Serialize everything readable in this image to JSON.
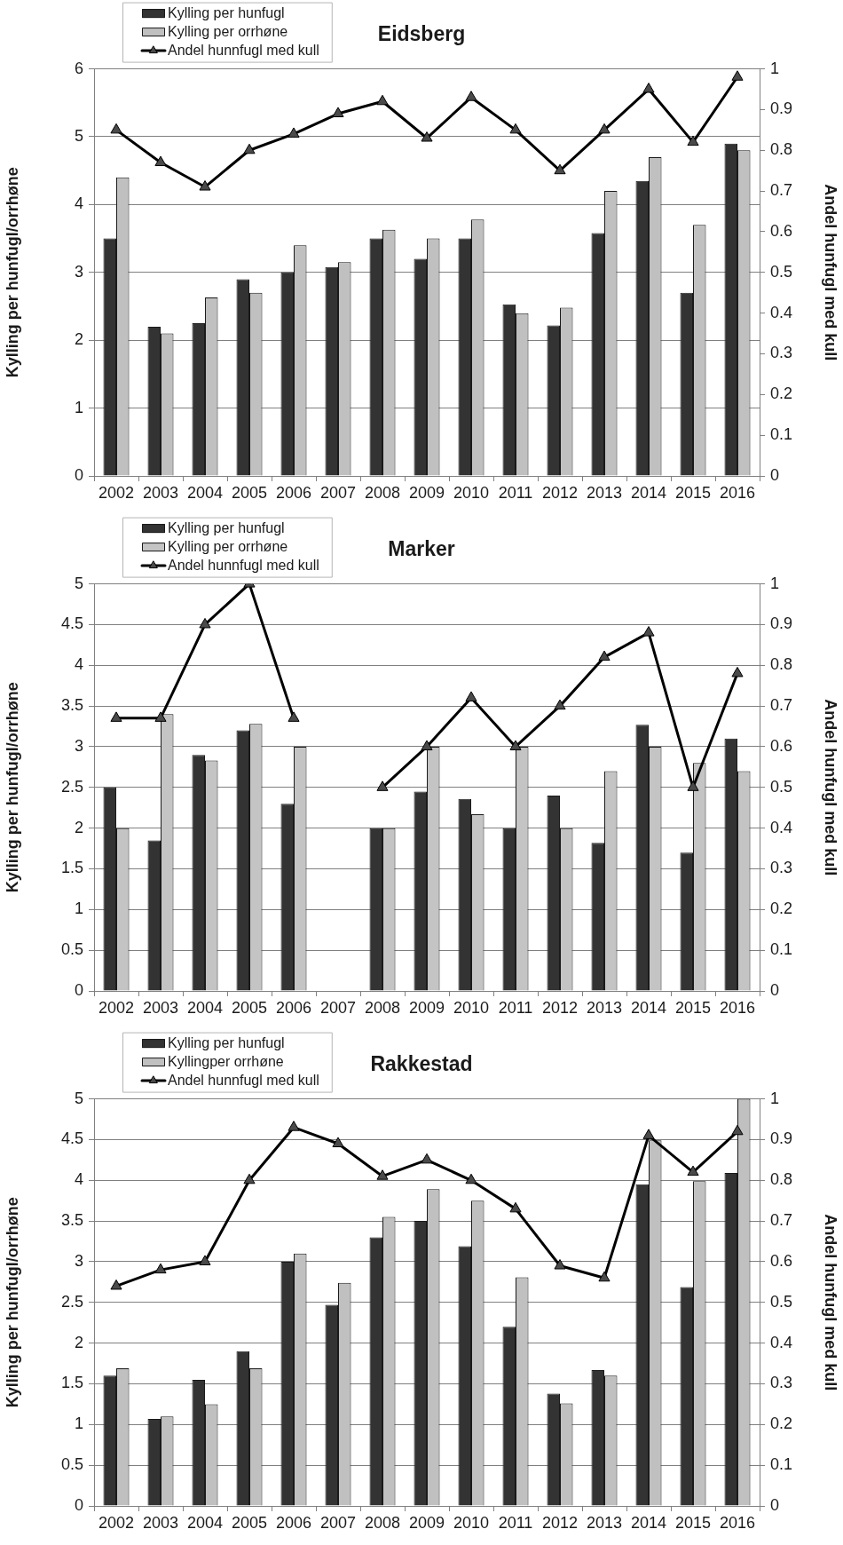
{
  "chart_data": [
    {
      "type": "bar",
      "title": "Eidsberg",
      "ylabel": "Kylling per hunfugl/orrhøne",
      "y2label": "Andel hunfugl med kull",
      "categories": [
        "2002",
        "2003",
        "2004",
        "2005",
        "2006",
        "2007",
        "2008",
        "2009",
        "2010",
        "2011",
        "2012",
        "2013",
        "2014",
        "2015",
        "2016"
      ],
      "series": [
        {
          "name": "Kylling per hunfugl",
          "color": "#333333",
          "values": [
            3.5,
            2.2,
            2.25,
            2.9,
            3.0,
            3.08,
            3.5,
            3.2,
            3.5,
            2.53,
            2.22,
            3.58,
            4.35,
            2.7,
            4.9
          ]
        },
        {
          "name": "Kylling per orrhøne",
          "color": "#c0c0c0",
          "values": [
            4.4,
            2.1,
            2.63,
            2.7,
            3.4,
            3.15,
            3.63,
            3.5,
            3.78,
            2.4,
            2.48,
            4.2,
            4.7,
            3.7,
            4.8
          ]
        },
        {
          "name": "Andel hunnfugl med kull",
          "type": "line",
          "axis": "y2",
          "color": "#000000",
          "values": [
            0.85,
            0.77,
            0.71,
            0.8,
            0.84,
            0.89,
            0.92,
            0.83,
            0.93,
            0.85,
            0.75,
            0.85,
            0.95,
            0.82,
            0.98
          ]
        }
      ],
      "ylim": [
        0,
        6
      ],
      "yticks": [
        0,
        1,
        2,
        3,
        4,
        5,
        6
      ],
      "y2lim": [
        0,
        1
      ],
      "y2ticks": [
        0,
        0.1,
        0.2,
        0.3,
        0.4,
        0.5,
        0.6,
        0.7,
        0.8,
        0.9,
        1
      ],
      "grid": "y",
      "legend": "top left",
      "marker": "triangle"
    },
    {
      "type": "bar",
      "title": "Marker",
      "ylabel": "Kylling per hunfugl/orrhøne",
      "y2label": "Andel hunfugl med kull",
      "categories": [
        "2002",
        "2003",
        "2004",
        "2005",
        "2006",
        "2007",
        "2008",
        "2009",
        "2010",
        "2011",
        "2012",
        "2013",
        "2014",
        "2015",
        "2016"
      ],
      "series": [
        {
          "name": "Kylling per hunfugl",
          "color": "#333333",
          "values": [
            2.5,
            1.85,
            2.9,
            3.2,
            2.3,
            null,
            2.0,
            2.45,
            2.36,
            2.0,
            2.4,
            1.82,
            3.27,
            1.7,
            3.1
          ]
        },
        {
          "name": "Kylling per orrhøne",
          "color": "#c4c4c4",
          "values": [
            2.0,
            3.4,
            2.83,
            3.28,
            3.0,
            null,
            2.0,
            3.0,
            2.17,
            3.0,
            2.0,
            2.7,
            3.0,
            2.8,
            2.7
          ]
        },
        {
          "name": "Andel hunnfugl med kull",
          "type": "line",
          "axis": "y2",
          "color": "#000000",
          "values": [
            0.67,
            0.67,
            0.9,
            1.0,
            0.67,
            null,
            0.5,
            0.6,
            0.72,
            0.6,
            0.7,
            0.82,
            0.88,
            0.5,
            0.78
          ]
        }
      ],
      "ylim": [
        0,
        5
      ],
      "yticks": [
        0,
        0.5,
        1,
        1.5,
        2,
        2.5,
        3,
        3.5,
        4,
        4.5,
        5
      ],
      "y2lim": [
        0,
        1
      ],
      "y2ticks": [
        0,
        0.1,
        0.2,
        0.3,
        0.4,
        0.5,
        0.6,
        0.7,
        0.8,
        0.9,
        1
      ],
      "grid": "y",
      "legend": "top left",
      "marker": "triangle"
    },
    {
      "type": "bar",
      "title": "Rakkestad",
      "ylabel": "Kylling per hunfugl/orrhøne",
      "y2label": "Andel hunfugl med kull",
      "categories": [
        "2002",
        "2003",
        "2004",
        "2005",
        "2006",
        "2007",
        "2008",
        "2009",
        "2010",
        "2011",
        "2012",
        "2013",
        "2014",
        "2015",
        "2016"
      ],
      "series": [
        {
          "name": "Kylling per hunfugl",
          "color": "#333333",
          "values": [
            1.6,
            1.07,
            1.55,
            1.9,
            3.0,
            2.47,
            3.3,
            3.5,
            3.19,
            2.2,
            1.38,
            1.67,
            3.95,
            2.69,
            4.09
          ]
        },
        {
          "name": "Kyllingper orrhøne",
          "color": "#c0c0c0",
          "values": [
            1.69,
            1.1,
            1.25,
            1.69,
            3.1,
            2.74,
            3.55,
            3.89,
            3.75,
            2.81,
            1.26,
            1.6,
            4.49,
            3.99,
            5.0
          ]
        },
        {
          "name": "Andel hunnfugl med kull",
          "type": "line",
          "axis": "y2",
          "color": "#000000",
          "values": [
            0.54,
            0.58,
            0.6,
            0.8,
            0.93,
            0.89,
            0.81,
            0.85,
            0.8,
            0.73,
            0.59,
            0.56,
            0.91,
            0.82,
            0.92
          ]
        }
      ],
      "ylim": [
        0,
        5
      ],
      "yticks": [
        0,
        0.5,
        1,
        1.5,
        2,
        2.5,
        3,
        3.5,
        4,
        4.5,
        5
      ],
      "y2lim": [
        0,
        1
      ],
      "y2ticks": [
        0,
        0.1,
        0.2,
        0.3,
        0.4,
        0.5,
        0.6,
        0.7,
        0.8,
        0.9,
        1
      ],
      "grid": "y",
      "legend": "top left",
      "marker": "triangle"
    }
  ]
}
